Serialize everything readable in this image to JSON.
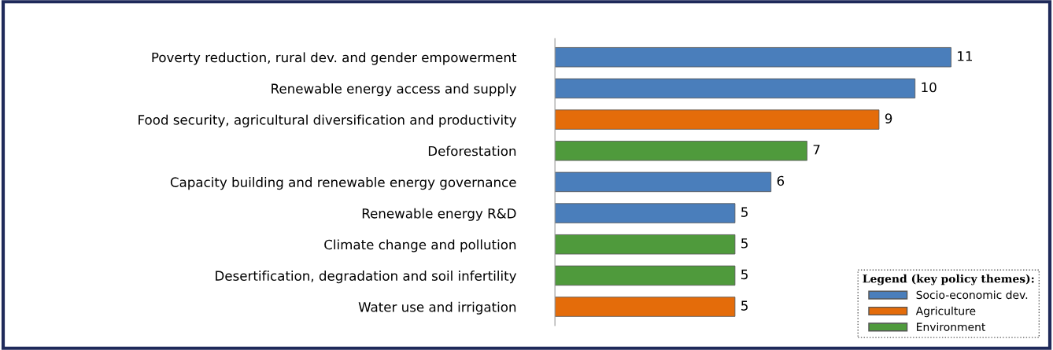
{
  "chart_data": {
    "type": "bar",
    "orientation": "horizontal",
    "categories": [
      "Poverty reduction, rural dev. and gender empowerment",
      "Renewable energy access and supply",
      "Food security, agricultural diversification and productivity",
      "Deforestation",
      "Capacity building and renewable energy governance",
      "Renewable energy R&D",
      "Climate change and pollution",
      "Desertification, degradation and soil infertility",
      "Water use and irrigation"
    ],
    "series": [
      {
        "name": "Socio-economic dev.",
        "color": "#4a7ebb",
        "values": [
          11,
          10,
          null,
          null,
          6,
          5,
          null,
          null,
          null
        ]
      },
      {
        "name": "Agriculture",
        "color": "#e46c0a",
        "values": [
          null,
          null,
          9,
          null,
          null,
          null,
          null,
          null,
          5
        ]
      },
      {
        "name": "Environment",
        "color": "#4f9a3c",
        "values": [
          null,
          null,
          null,
          7,
          null,
          null,
          5,
          5,
          null
        ]
      }
    ],
    "data_labels": true,
    "legend": "bottom right",
    "legend_title": "Legend (key policy themes):",
    "tick_labels": "y",
    "grid": false
  }
}
